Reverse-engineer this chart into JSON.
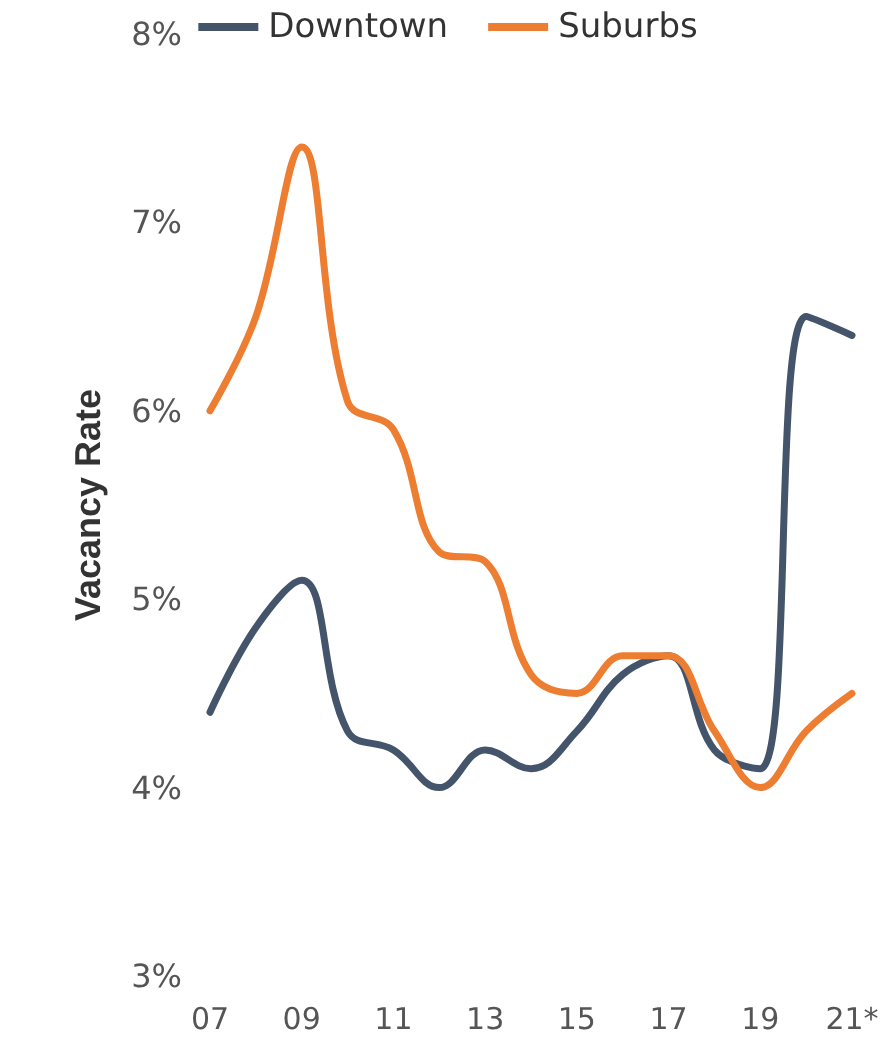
{
  "chart_data": {
    "type": "line",
    "ylabel": "Vacancy Rate",
    "categories": [
      "07",
      null,
      "09",
      null,
      "11",
      null,
      "13",
      null,
      "15",
      null,
      "17",
      null,
      "19",
      null,
      "21*"
    ],
    "series": [
      {
        "name": "Downtown",
        "color": "#44546a",
        "values": [
          4.4,
          4.85,
          5.1,
          4.3,
          4.2,
          4.0,
          4.2,
          4.1,
          4.3,
          4.6,
          4.7,
          4.2,
          4.1,
          6.5,
          6.4
        ]
      },
      {
        "name": "Suburbs",
        "color": "#ed7d31",
        "values": [
          6.0,
          6.5,
          7.4,
          6.05,
          5.9,
          5.25,
          5.2,
          4.6,
          4.5,
          4.7,
          4.7,
          4.3,
          4.0,
          4.3,
          4.5
        ]
      }
    ],
    "ylim": [
      3,
      8
    ],
    "yticks": [
      {
        "value": 3,
        "label": "3%"
      },
      {
        "value": 4,
        "label": "4%"
      },
      {
        "value": 5,
        "label": "5%"
      },
      {
        "value": 6,
        "label": "6%"
      },
      {
        "value": 7,
        "label": "7%"
      },
      {
        "value": 8,
        "label": "8%"
      }
    ],
    "grid": false,
    "legend": "top",
    "marker": "none",
    "line_style": "solid"
  }
}
